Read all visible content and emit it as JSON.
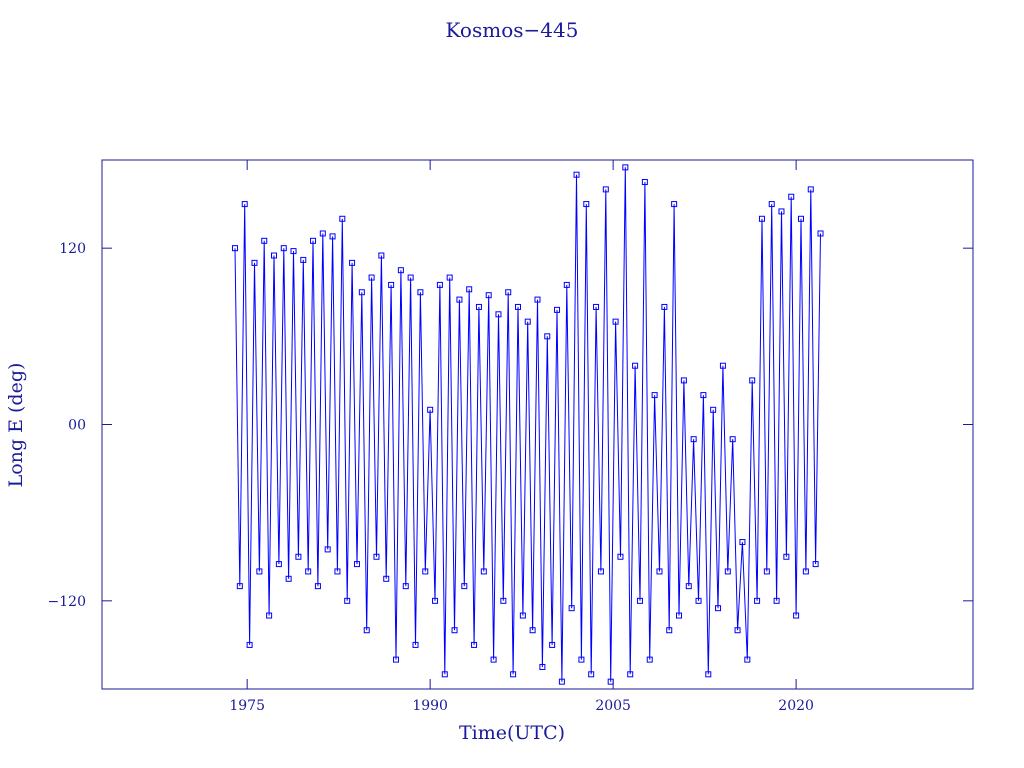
{
  "chart_data": {
    "type": "line",
    "title": "Kosmos−445",
    "x_label": "Time(UTC)",
    "y_label": "Long E (deg)",
    "xlim": [
      1963.1,
      2034.5
    ],
    "ylim": [
      -180,
      180
    ],
    "xticks": [
      1975,
      1990,
      2005,
      2020
    ],
    "yticks": [
      {
        "value": -120,
        "label": "−120"
      },
      {
        "value": 0,
        "label": "00"
      },
      120
    ],
    "series": [
      {
        "name": "Kosmos−445",
        "color": "#0000ff",
        "x": [
          1974.0,
          1974.4,
          1974.8,
          1975.2,
          1975.6,
          1976.0,
          1976.4,
          1976.8,
          1977.2,
          1977.6,
          1978.0,
          1978.4,
          1978.8,
          1979.2,
          1979.6,
          1980.0,
          1980.4,
          1980.8,
          1981.2,
          1981.6,
          1982.0,
          1982.4,
          1982.8,
          1983.2,
          1983.6,
          1984.0,
          1984.4,
          1984.8,
          1985.2,
          1985.6,
          1986.0,
          1986.4,
          1986.8,
          1987.2,
          1987.6,
          1988.0,
          1988.4,
          1988.8,
          1989.2,
          1989.6,
          1990.0,
          1990.4,
          1990.8,
          1991.2,
          1991.6,
          1992.0,
          1992.4,
          1992.8,
          1993.2,
          1993.6,
          1994.0,
          1994.4,
          1994.8,
          1995.2,
          1995.6,
          1996.0,
          1996.4,
          1996.8,
          1997.2,
          1997.6,
          1998.0,
          1998.4,
          1998.8,
          1999.2,
          1999.6,
          2000.0,
          2000.4,
          2000.8,
          2001.2,
          2001.6,
          2002.0,
          2002.4,
          2002.8,
          2003.2,
          2003.6,
          2004.0,
          2004.4,
          2004.8,
          2005.2,
          2005.6,
          2006.0,
          2006.4,
          2006.8,
          2007.2,
          2007.6,
          2008.0,
          2008.4,
          2008.8,
          2009.2,
          2009.6,
          2010.0,
          2010.4,
          2010.8,
          2011.2,
          2011.6,
          2012.0,
          2012.4,
          2012.8,
          2013.2,
          2013.6,
          2014.0,
          2014.4,
          2014.8,
          2015.2,
          2015.6,
          2016.0,
          2016.4,
          2016.8,
          2017.2,
          2017.6,
          2018.0,
          2018.4,
          2018.8,
          2019.2,
          2019.6,
          2020.0,
          2020.4,
          2020.8,
          2021.2,
          2021.6,
          2022.0
        ],
        "values": [
          120,
          -110,
          150,
          -150,
          110,
          -100,
          125,
          -130,
          115,
          -95,
          120,
          -105,
          118,
          -90,
          112,
          -100,
          125,
          -110,
          130,
          -85,
          128,
          -100,
          140,
          -120,
          110,
          -95,
          90,
          -140,
          100,
          -90,
          115,
          -105,
          95,
          -160,
          105,
          -110,
          100,
          -150,
          90,
          -100,
          10,
          -120,
          95,
          -170,
          100,
          -140,
          85,
          -110,
          92,
          -150,
          80,
          -100,
          88,
          -160,
          75,
          -120,
          90,
          -170,
          80,
          -130,
          70,
          -140,
          85,
          -165,
          60,
          -150,
          78,
          -175,
          95,
          -125,
          170,
          -160,
          150,
          -170,
          80,
          -100,
          160,
          -175,
          70,
          -90,
          175,
          -170,
          40,
          -120,
          165,
          -160,
          20,
          -100,
          80,
          -140,
          150,
          -130,
          30,
          -110,
          -10,
          -120,
          20,
          -170,
          10,
          -125,
          40,
          -100,
          -10,
          -140,
          -80,
          -160,
          30,
          -120,
          140,
          -100,
          150,
          -120,
          145,
          -90,
          155,
          -130,
          140,
          -100,
          160,
          -95,
          130
        ]
      }
    ]
  }
}
